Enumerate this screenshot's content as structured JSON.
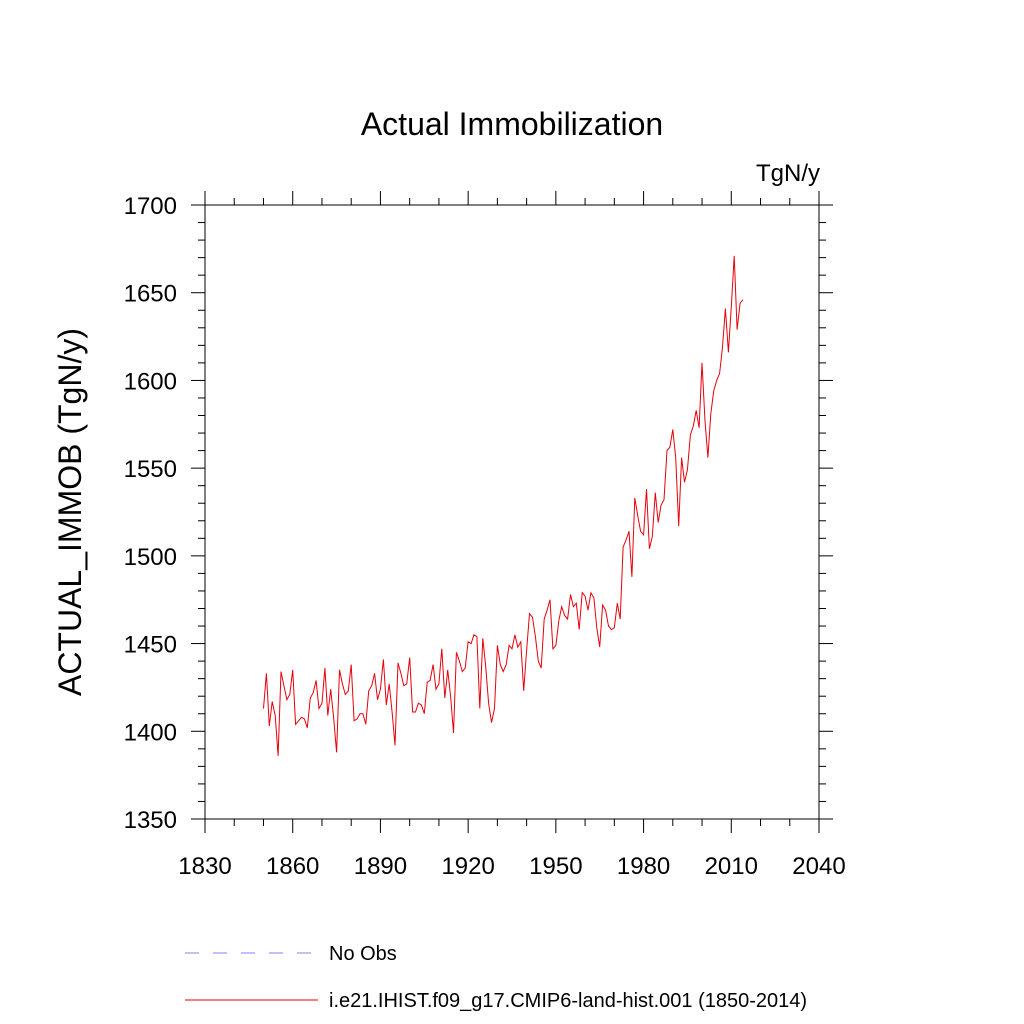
{
  "chart_data": {
    "type": "line",
    "title": "Actual Immobilization",
    "units_label": "TgN/y",
    "ylabel": "ACTUAL_IMMOB  (TgN/y)",
    "xlabel": "",
    "xlim": [
      1830,
      2040
    ],
    "ylim": [
      1350,
      1700
    ],
    "x_ticks": [
      1830,
      1860,
      1890,
      1920,
      1950,
      1980,
      2010,
      2040
    ],
    "x_tick_labels": [
      "1830",
      "1860",
      "1890",
      "1920",
      "1950",
      "1980",
      "2010",
      "2040"
    ],
    "y_ticks": [
      1350,
      1400,
      1450,
      1500,
      1550,
      1600,
      1650,
      1700
    ],
    "y_tick_labels": [
      "1350",
      "1400",
      "1450",
      "1500",
      "1550",
      "1600",
      "1650",
      "1700"
    ],
    "grid": false,
    "legend_placement": "bottom",
    "series": [
      {
        "name": "No Obs",
        "color": "#8080ff",
        "dash": "dashed",
        "x": [],
        "values": []
      },
      {
        "name": "i.e21.IHIST.f09_g17.CMIP6-land-hist.001 (1850-2014)",
        "color": "#e8000b",
        "dash": "solid",
        "x": [
          1850,
          1851,
          1852,
          1853,
          1854,
          1855,
          1856,
          1857,
          1858,
          1859,
          1860,
          1861,
          1862,
          1863,
          1864,
          1865,
          1866,
          1867,
          1868,
          1869,
          1870,
          1871,
          1872,
          1873,
          1874,
          1875,
          1876,
          1877,
          1878,
          1879,
          1880,
          1881,
          1882,
          1883,
          1884,
          1885,
          1886,
          1887,
          1888,
          1889,
          1890,
          1891,
          1892,
          1893,
          1894,
          1895,
          1896,
          1897,
          1898,
          1899,
          1900,
          1901,
          1902,
          1903,
          1904,
          1905,
          1906,
          1907,
          1908,
          1909,
          1910,
          1911,
          1912,
          1913,
          1914,
          1915,
          1916,
          1917,
          1918,
          1919,
          1920,
          1921,
          1922,
          1923,
          1924,
          1925,
          1926,
          1927,
          1928,
          1929,
          1930,
          1931,
          1932,
          1933,
          1934,
          1935,
          1936,
          1937,
          1938,
          1939,
          1940,
          1941,
          1942,
          1943,
          1944,
          1945,
          1946,
          1947,
          1948,
          1949,
          1950,
          1951,
          1952,
          1953,
          1954,
          1955,
          1956,
          1957,
          1958,
          1959,
          1960,
          1961,
          1962,
          1963,
          1964,
          1965,
          1966,
          1967,
          1968,
          1969,
          1970,
          1971,
          1972,
          1973,
          1974,
          1975,
          1976,
          1977,
          1978,
          1979,
          1980,
          1981,
          1982,
          1983,
          1984,
          1985,
          1986,
          1987,
          1988,
          1989,
          1990,
          1991,
          1992,
          1993,
          1994,
          1995,
          1996,
          1997,
          1998,
          1999,
          2000,
          2001,
          2002,
          2003,
          2004,
          2005,
          2006,
          2007,
          2008,
          2009,
          2010,
          2011,
          2012,
          2013,
          2014
        ],
        "values": [
          1413,
          1433,
          1403,
          1417,
          1409,
          1386,
          1434,
          1426,
          1418,
          1421,
          1435,
          1404,
          1406,
          1408,
          1407,
          1402,
          1419,
          1422,
          1429,
          1413,
          1416,
          1436,
          1409,
          1424,
          1408,
          1388,
          1435,
          1427,
          1421,
          1423,
          1438,
          1406,
          1407,
          1410,
          1410,
          1404,
          1423,
          1426,
          1433,
          1418,
          1424,
          1441,
          1415,
          1427,
          1411,
          1392,
          1439,
          1433,
          1426,
          1427,
          1442,
          1411,
          1411,
          1416,
          1415,
          1410,
          1428,
          1429,
          1438,
          1424,
          1427,
          1447,
          1419,
          1435,
          1420,
          1399,
          1445,
          1440,
          1434,
          1436,
          1451,
          1450,
          1455,
          1454,
          1413,
          1453,
          1437,
          1416,
          1405,
          1413,
          1449,
          1438,
          1434,
          1438,
          1449,
          1447,
          1455,
          1448,
          1451,
          1423,
          1446,
          1467,
          1465,
          1454,
          1440,
          1436,
          1464,
          1469,
          1475,
          1447,
          1449,
          1463,
          1471,
          1466,
          1464,
          1478,
          1471,
          1473,
          1458,
          1479,
          1477,
          1469,
          1479,
          1476,
          1459,
          1448,
          1472,
          1469,
          1460,
          1458,
          1459,
          1473,
          1464,
          1505,
          1509,
          1514,
          1488,
          1533,
          1523,
          1514,
          1512,
          1538,
          1504,
          1511,
          1536,
          1519,
          1529,
          1532,
          1560,
          1562,
          1572,
          1556,
          1517,
          1556,
          1542,
          1549,
          1569,
          1574,
          1583,
          1573,
          1610,
          1577,
          1556,
          1581,
          1594,
          1600,
          1604,
          1619,
          1641,
          1616,
          1642,
          1671,
          1629,
          1644,
          1646
        ]
      }
    ]
  }
}
